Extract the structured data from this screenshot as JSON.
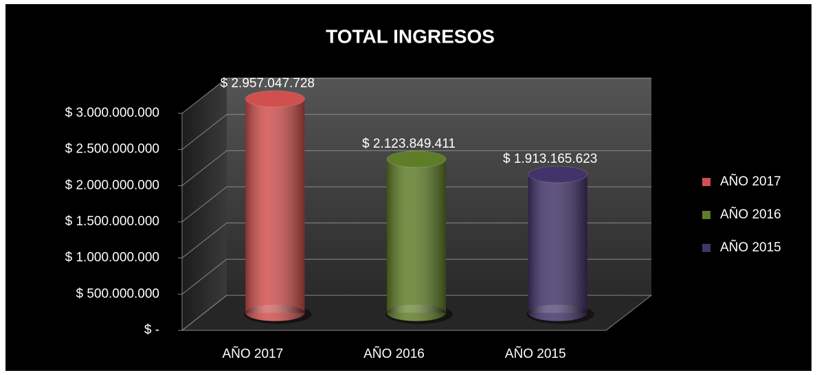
{
  "chart_data": {
    "type": "bar3d",
    "title": "TOTAL INGRESOS",
    "categories": [
      "AÑO 2017",
      "AÑO 2016",
      "AÑO 2015"
    ],
    "values": [
      2957047728,
      2123849411,
      1913165623
    ],
    "value_labels": [
      "$ 2.957.047.728",
      "$ 2.123.849.411",
      "$ 1.913.165.623"
    ],
    "colors": [
      "#d0504d",
      "#5f7d27",
      "#42346a"
    ],
    "ylim": [
      0,
      3000000000
    ],
    "yticks": [
      {
        "value": 0,
        "label": "$ -"
      },
      {
        "value": 500000000,
        "label": "$ 500.000.000"
      },
      {
        "value": 1000000000,
        "label": "$ 1.000.000.000"
      },
      {
        "value": 1500000000,
        "label": "$ 1.500.000.000"
      },
      {
        "value": 2000000000,
        "label": "$ 2.000.000.000"
      },
      {
        "value": 2500000000,
        "label": "$ 2.500.000.000"
      },
      {
        "value": 3000000000,
        "label": "$ 3.000.000.000"
      }
    ],
    "grid": true,
    "legend": "right"
  }
}
